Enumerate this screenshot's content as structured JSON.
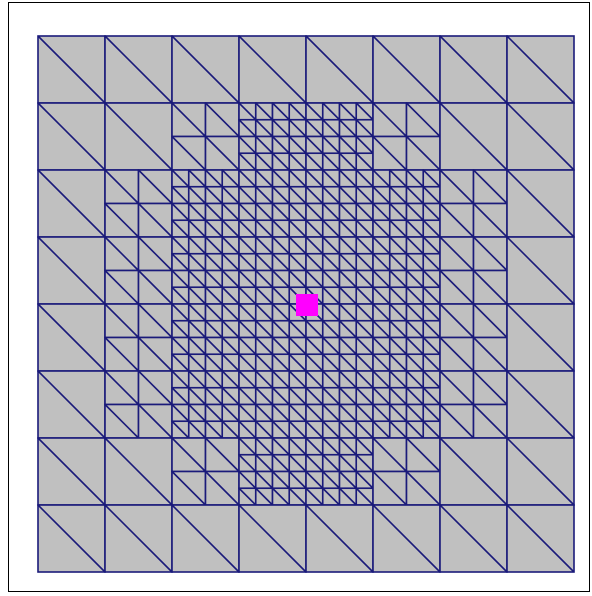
{
  "colors": {
    "background": "#ffffff",
    "frame": "#000000",
    "mesh_fill": "#c0c0c0",
    "mesh_edge": "#1a1a7a",
    "marker": "#ff00ff"
  },
  "mesh": {
    "coarse_divisions": 8,
    "refinement_levels": [
      {
        "level": 1,
        "region_cells": [
          [
            2,
            1
          ],
          [
            5,
            1
          ],
          [
            1,
            2
          ],
          [
            6,
            2
          ],
          [
            1,
            3
          ],
          [
            6,
            3
          ],
          [
            1,
            4
          ],
          [
            6,
            4
          ],
          [
            1,
            5
          ],
          [
            6,
            5
          ],
          [
            2,
            6
          ],
          [
            5,
            6
          ]
        ]
      },
      {
        "level": 2,
        "region_cells": [
          [
            3,
            1
          ],
          [
            4,
            1
          ],
          [
            2,
            2
          ],
          [
            3,
            2
          ],
          [
            4,
            2
          ],
          [
            5,
            2
          ],
          [
            2,
            3
          ],
          [
            3,
            3
          ],
          [
            4,
            3
          ],
          [
            5,
            3
          ],
          [
            2,
            4
          ],
          [
            3,
            4
          ],
          [
            4,
            4
          ],
          [
            5,
            4
          ],
          [
            2,
            5
          ],
          [
            3,
            5
          ],
          [
            4,
            5
          ],
          [
            5,
            5
          ],
          [
            3,
            6
          ],
          [
            4,
            6
          ]
        ]
      }
    ]
  },
  "marker": {
    "cell": "center"
  }
}
